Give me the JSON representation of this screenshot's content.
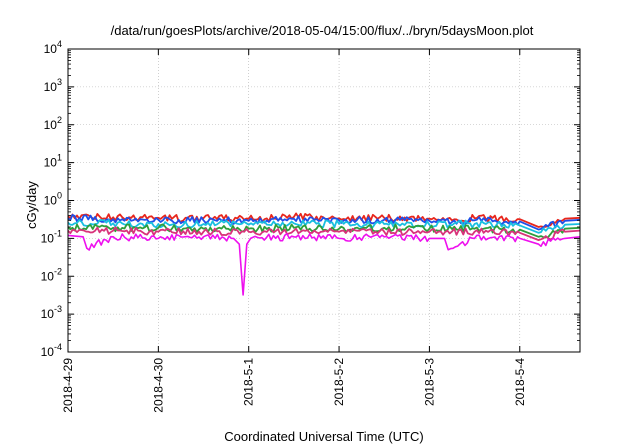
{
  "chart_data": {
    "type": "line",
    "title": "/data/run/goesPlots/archive/2018-05-04/15:00/flux/../bryn/5daysMoon.plot",
    "xlabel": "Coordinated Universal Time (UTC)",
    "ylabel": "cGy/day",
    "yscale": "log",
    "ylim": [
      0.0001,
      10000
    ],
    "xlim": [
      "2018-04-29",
      "2018-05-04T16:00"
    ],
    "x_ticks": [
      "2018-4-29",
      "2018-4-30",
      "2018-5-1",
      "2018-5-2",
      "2018-5-3",
      "2018-5-4"
    ],
    "y_ticks": [
      {
        "base": "10",
        "exp": "4"
      },
      {
        "base": "10",
        "exp": "3"
      },
      {
        "base": "10",
        "exp": "2"
      },
      {
        "base": "10",
        "exp": "1"
      },
      {
        "base": "10",
        "exp": "0"
      },
      {
        "base": "10",
        "exp": "-1"
      },
      {
        "base": "10",
        "exp": "-2"
      },
      {
        "base": "10",
        "exp": "-3"
      },
      {
        "base": "10",
        "exp": "-4"
      }
    ],
    "grid": true,
    "series": [
      {
        "color": "#e8261c",
        "x": [
          "2018-04-29T00:00",
          "2018-04-29T12:00",
          "2018-04-30T00:00",
          "2018-04-30T12:00",
          "2018-05-01T00:00",
          "2018-05-01T12:00",
          "2018-05-02T00:00",
          "2018-05-02T12:00",
          "2018-05-03T00:00",
          "2018-05-03T12:00",
          "2018-05-04T00:00",
          "2018-05-04T05:00",
          "2018-05-04T12:00",
          "2018-05-04T16:00"
        ],
        "values": [
          0.38,
          0.36,
          0.35,
          0.34,
          0.33,
          0.37,
          0.34,
          0.35,
          0.33,
          0.34,
          0.32,
          0.2,
          0.33,
          0.35
        ]
      },
      {
        "color": "#1f4fe8",
        "x": [
          "2018-04-29T00:00",
          "2018-04-29T12:00",
          "2018-04-30T00:00",
          "2018-04-30T12:00",
          "2018-05-01T00:00",
          "2018-05-01T12:00",
          "2018-05-02T00:00",
          "2018-05-02T12:00",
          "2018-05-03T00:00",
          "2018-05-03T12:00",
          "2018-05-04T00:00",
          "2018-05-04T05:00",
          "2018-05-04T12:00",
          "2018-05-04T16:00"
        ],
        "values": [
          0.34,
          0.32,
          0.31,
          0.3,
          0.29,
          0.33,
          0.3,
          0.31,
          0.29,
          0.3,
          0.28,
          0.17,
          0.29,
          0.31
        ]
      },
      {
        "color": "#19bfe0",
        "x": [
          "2018-04-29T00:00",
          "2018-04-29T12:00",
          "2018-04-30T00:00",
          "2018-04-30T12:00",
          "2018-05-01T00:00",
          "2018-05-01T12:00",
          "2018-05-02T00:00",
          "2018-05-02T12:00",
          "2018-05-03T00:00",
          "2018-05-03T12:00",
          "2018-05-04T00:00",
          "2018-05-04T05:00",
          "2018-05-04T12:00",
          "2018-05-04T16:00"
        ],
        "values": [
          0.26,
          0.25,
          0.24,
          0.24,
          0.23,
          0.25,
          0.24,
          0.24,
          0.23,
          0.24,
          0.22,
          0.14,
          0.23,
          0.24
        ]
      },
      {
        "color": "#2e9e3a",
        "x": [
          "2018-04-29T00:00",
          "2018-04-29T12:00",
          "2018-04-30T00:00",
          "2018-04-30T12:00",
          "2018-05-01T00:00",
          "2018-05-01T12:00",
          "2018-05-02T00:00",
          "2018-05-02T12:00",
          "2018-05-03T00:00",
          "2018-05-03T12:00",
          "2018-05-04T00:00",
          "2018-05-04T05:00",
          "2018-05-04T12:00",
          "2018-05-04T16:00"
        ],
        "values": [
          0.2,
          0.19,
          0.19,
          0.18,
          0.18,
          0.19,
          0.18,
          0.19,
          0.18,
          0.18,
          0.17,
          0.11,
          0.18,
          0.19
        ]
      },
      {
        "color": "#d8337a",
        "x": [
          "2018-04-29T00:00",
          "2018-04-29T12:00",
          "2018-04-30T00:00",
          "2018-04-30T12:00",
          "2018-05-01T00:00",
          "2018-05-01T12:00",
          "2018-05-02T00:00",
          "2018-05-02T12:00",
          "2018-05-03T00:00",
          "2018-05-03T12:00",
          "2018-05-04T00:00",
          "2018-05-04T05:00",
          "2018-05-04T12:00",
          "2018-05-04T16:00"
        ],
        "values": [
          0.16,
          0.16,
          0.15,
          0.15,
          0.15,
          0.16,
          0.15,
          0.15,
          0.15,
          0.15,
          0.14,
          0.09,
          0.15,
          0.16
        ]
      },
      {
        "color": "#ee10ee",
        "x": [
          "2018-04-29T00:00",
          "2018-04-29T04:00",
          "2018-04-29T05:00",
          "2018-04-29T12:00",
          "2018-04-30T00:00",
          "2018-04-30T12:00",
          "2018-04-30T20:00",
          "2018-04-30T21:30",
          "2018-04-30T22:30",
          "2018-04-30T23:30",
          "2018-05-01T00:30",
          "2018-05-01T12:00",
          "2018-05-02T00:00",
          "2018-05-02T12:00",
          "2018-05-03T00:00",
          "2018-05-03T04:00",
          "2018-05-03T05:00",
          "2018-05-03T12:00",
          "2018-05-04T00:00",
          "2018-05-04T05:00",
          "2018-05-04T12:00",
          "2018-05-04T16:00"
        ],
        "values": [
          0.12,
          0.11,
          0.055,
          0.11,
          0.1,
          0.11,
          0.1,
          0.07,
          0.0032,
          0.07,
          0.1,
          0.11,
          0.1,
          0.11,
          0.1,
          0.1,
          0.05,
          0.1,
          0.1,
          0.07,
          0.1,
          0.11
        ]
      }
    ]
  }
}
